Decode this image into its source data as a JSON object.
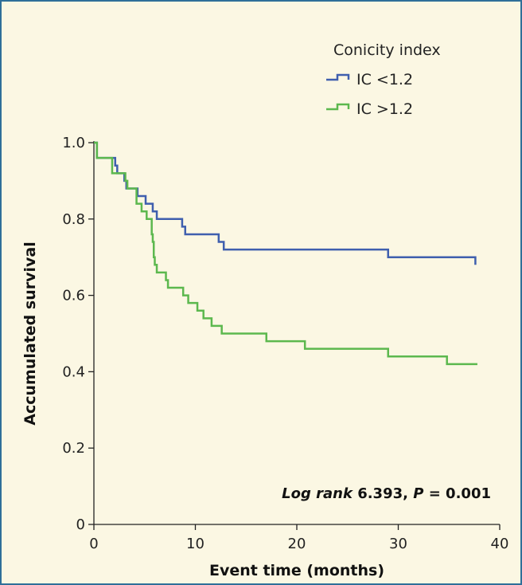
{
  "chart_data": {
    "type": "line",
    "subtype": "kaplan-meier step",
    "xlabel": "Event time (months)",
    "ylabel": "Accumulated survival",
    "xlim": [
      0,
      40
    ],
    "ylim": [
      0,
      1.0
    ],
    "xticks": [
      0,
      10,
      20,
      30,
      40
    ],
    "yticks": [
      0,
      0.2,
      0.4,
      0.6,
      0.8,
      1.0
    ],
    "ytick_labels": [
      "0",
      "0.2",
      "0.4",
      "0.6",
      "0.8",
      "1.0"
    ],
    "grid": false,
    "legend": {
      "title": "Conicity index",
      "position": "top-right"
    },
    "annotation": {
      "prefix": "Log rank",
      "stat": " 6.393, ",
      "p_symbol": "P",
      "p_value": " = 0.001"
    },
    "series": [
      {
        "name": "IC <1.2",
        "color": "#3f5fae",
        "steps": [
          [
            0,
            1.0
          ],
          [
            0.3,
            0.96
          ],
          [
            2.1,
            0.94
          ],
          [
            2.3,
            0.92
          ],
          [
            3.0,
            0.9
          ],
          [
            3.2,
            0.88
          ],
          [
            4.3,
            0.86
          ],
          [
            5.1,
            0.84
          ],
          [
            5.8,
            0.82
          ],
          [
            6.2,
            0.8
          ],
          [
            8.7,
            0.78
          ],
          [
            9.0,
            0.76
          ],
          [
            12.3,
            0.74
          ],
          [
            12.8,
            0.72
          ],
          [
            29.0,
            0.7
          ],
          [
            37.6,
            0.68
          ]
        ]
      },
      {
        "name": "IC >1.2",
        "color": "#5cb84e",
        "steps": [
          [
            0,
            1.0
          ],
          [
            0.3,
            0.96
          ],
          [
            1.8,
            0.92
          ],
          [
            3.1,
            0.9
          ],
          [
            3.3,
            0.88
          ],
          [
            4.2,
            0.84
          ],
          [
            4.7,
            0.82
          ],
          [
            5.2,
            0.8
          ],
          [
            5.7,
            0.76
          ],
          [
            5.8,
            0.74
          ],
          [
            5.9,
            0.7
          ],
          [
            6.0,
            0.68
          ],
          [
            6.2,
            0.66
          ],
          [
            7.1,
            0.64
          ],
          [
            7.3,
            0.62
          ],
          [
            8.8,
            0.6
          ],
          [
            9.3,
            0.58
          ],
          [
            10.2,
            0.56
          ],
          [
            10.8,
            0.54
          ],
          [
            11.6,
            0.52
          ],
          [
            12.6,
            0.5
          ],
          [
            17.0,
            0.48
          ],
          [
            20.8,
            0.46
          ],
          [
            29.0,
            0.44
          ],
          [
            34.8,
            0.42
          ]
        ],
        "end_x": 37.8
      }
    ]
  }
}
